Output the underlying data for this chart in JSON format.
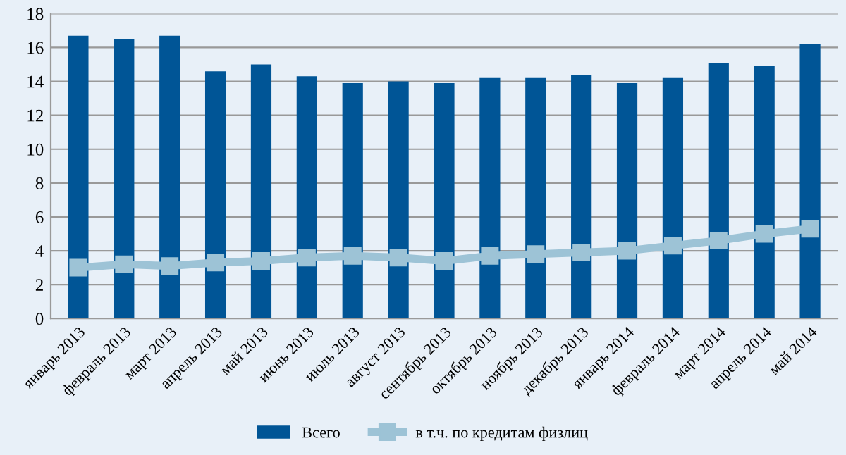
{
  "chart_data": {
    "type": "bar",
    "categories": [
      "январь 2013",
      "февраль 2013",
      "март 2013",
      "апрель 2013",
      "май 2013",
      "июнь 2013",
      "июль 2013",
      "август 2013",
      "сентябрь 2013",
      "октябрь 2013",
      "ноябрь 2013",
      "декабрь 2013",
      "январь 2014",
      "февраль 2014",
      "март 2014",
      "апрель 2014",
      "май 2014"
    ],
    "series": [
      {
        "name": "Всего",
        "color": "#005596",
        "values": [
          16.7,
          16.5,
          16.7,
          14.6,
          15.0,
          14.3,
          13.9,
          14.0,
          13.9,
          14.2,
          14.2,
          14.4,
          13.9,
          14.2,
          15.1,
          14.9,
          16.2
        ]
      },
      {
        "name": "в т.ч. по кредитам физлиц",
        "type": "line",
        "color": "#9dc3d6",
        "marker": "square",
        "values": [
          3.0,
          3.2,
          3.1,
          3.3,
          3.4,
          3.6,
          3.7,
          3.6,
          3.4,
          3.7,
          3.8,
          3.9,
          4.0,
          4.3,
          4.6,
          5.0,
          5.3
        ]
      }
    ],
    "ylim": [
      0,
      18
    ],
    "yticks": [
      0,
      2,
      4,
      6,
      8,
      10,
      12,
      14,
      16,
      18
    ],
    "grid": "y",
    "legend": "bottom"
  }
}
